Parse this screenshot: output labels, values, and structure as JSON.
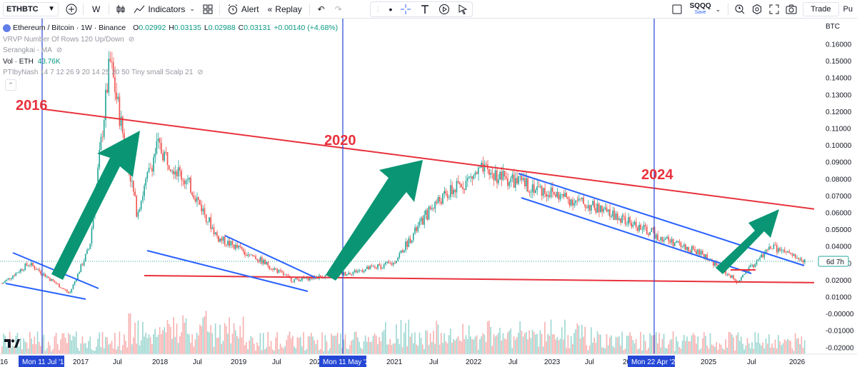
{
  "toolbar": {
    "symbol": "ETHBTC",
    "interval": "W",
    "indicators_label": "Indicators",
    "alert_label": "Alert",
    "replay_label": "Replay",
    "layout_name": "SQQQ",
    "save_label": "Save",
    "trade_label": "Trade",
    "publish_label": "Pu"
  },
  "legend": {
    "title": "Ethereum / Bitcoin · 1W · Binance",
    "o_label": "O",
    "o_value": "0.02992",
    "h_label": "H",
    "h_value": "0.03135",
    "l_label": "L",
    "l_value": "0.02988",
    "c_label": "C",
    "c_value": "0.03131",
    "change": "+0.00140 (+4.68%)",
    "indicators": [
      "VRVP Number Of Rows 120 Up/Down",
      "Serangkai - MA"
    ],
    "vol_label": "Vol · ETH",
    "vol_value": "43.76K",
    "ptibynash": "PTIbyNash 14 7 12 26 9 20 14 25 20 50 Tiny small Scalp 21"
  },
  "chart_data": {
    "type": "candlestick",
    "currency": "BTC",
    "price_axis_ticks": [
      "0.16000",
      "0.15000",
      "0.14000",
      "0.13000",
      "0.12000",
      "0.11000",
      "0.10000",
      "0.09000",
      "0.08000",
      "0.07000",
      "0.06000",
      "0.05000",
      "0.04000",
      "0.03000",
      "0.02000",
      "0.01000",
      "-0.00000",
      "-0.01000",
      "-0.02000"
    ],
    "ylim": [
      -0.02,
      0.16
    ],
    "current_price_label": "6d 7h",
    "time_axis_labels": [
      "16",
      "2017",
      "Jul",
      "2018",
      "Jul",
      "2019",
      "Jul",
      "2021",
      "Jul",
      "2022",
      "Jul",
      "2023",
      "Jul",
      "2025",
      "Jul",
      "2026"
    ],
    "crosshair_date_labels": [
      "Mon 11 Jul '16",
      "Mon 11 May '20",
      "Mon 22 Apr '24"
    ],
    "partial_axis_labels": [
      "202",
      "20"
    ],
    "annotations": [
      "2016",
      "2020",
      "2024"
    ],
    "approx_weekly_close": [
      {
        "date": "2016-02",
        "price": 0.018
      },
      {
        "date": "2016-06",
        "price": 0.03
      },
      {
        "date": "2016-10",
        "price": 0.018
      },
      {
        "date": "2016-12",
        "price": 0.012
      },
      {
        "date": "2017-03",
        "price": 0.04
      },
      {
        "date": "2017-06",
        "price": 0.15
      },
      {
        "date": "2017-10",
        "price": 0.06
      },
      {
        "date": "2018-01",
        "price": 0.1
      },
      {
        "date": "2018-06",
        "price": 0.075
      },
      {
        "date": "2018-10",
        "price": 0.045
      },
      {
        "date": "2019-03",
        "price": 0.035
      },
      {
        "date": "2019-09",
        "price": 0.02
      },
      {
        "date": "2020-05",
        "price": 0.024
      },
      {
        "date": "2020-12",
        "price": 0.03
      },
      {
        "date": "2021-06",
        "price": 0.065
      },
      {
        "date": "2022-01",
        "price": 0.085
      },
      {
        "date": "2022-09",
        "price": 0.075
      },
      {
        "date": "2023-06",
        "price": 0.063
      },
      {
        "date": "2024-04",
        "price": 0.045
      },
      {
        "date": "2024-10",
        "price": 0.035
      },
      {
        "date": "2025-03",
        "price": 0.019
      },
      {
        "date": "2025-08",
        "price": 0.04
      },
      {
        "date": "2026-01",
        "price": 0.031
      }
    ]
  },
  "colors": {
    "up": "#26a69a",
    "down": "#ef5350",
    "trendline_red": "#e8323c",
    "trendline_blue": "#2962ff",
    "arrow_green": "#0a9674",
    "crosshair": "#2447d6"
  }
}
